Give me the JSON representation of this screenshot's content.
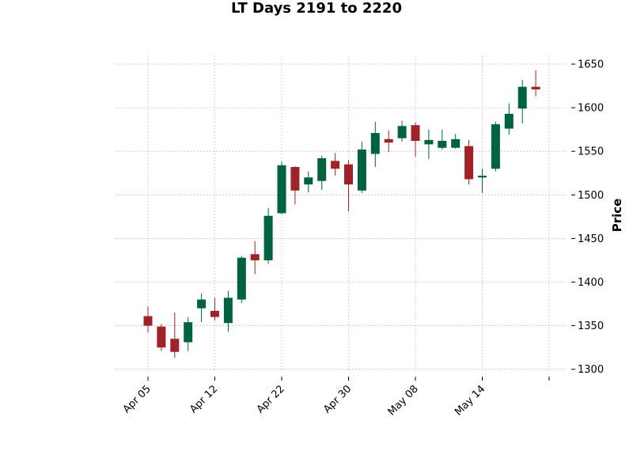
{
  "chart_data": {
    "type": "candlestick",
    "title": "LT Days 2191 to 2220",
    "ylabel": "Price",
    "xlabel": "",
    "ylim": [
      1297,
      1660
    ],
    "y_ticks": [
      1300,
      1350,
      1400,
      1450,
      1500,
      1550,
      1600,
      1650
    ],
    "x_tick_labels": [
      "Apr 05",
      "Apr 12",
      "Apr 22",
      "Apr 30",
      "May 08",
      "May 14",
      ""
    ],
    "x_tick_index": [
      0,
      5,
      10,
      15,
      20,
      25,
      30
    ],
    "grid": true,
    "y_axis_side": "right",
    "colors": {
      "up": "#006340",
      "down": "#a02128",
      "grid": "#b0b0b0"
    },
    "candles": [
      {
        "open": 1361,
        "high": 1372,
        "low": 1342,
        "close": 1350
      },
      {
        "open": 1349,
        "high": 1352,
        "low": 1321,
        "close": 1325
      },
      {
        "open": 1335,
        "high": 1365,
        "low": 1313,
        "close": 1320
      },
      {
        "open": 1331,
        "high": 1360,
        "low": 1321,
        "close": 1354
      },
      {
        "open": 1370,
        "high": 1387,
        "low": 1354,
        "close": 1380
      },
      {
        "open": 1367,
        "high": 1382,
        "low": 1356,
        "close": 1360
      },
      {
        "open": 1353,
        "high": 1390,
        "low": 1343,
        "close": 1382
      },
      {
        "open": 1380,
        "high": 1430,
        "low": 1376,
        "close": 1428
      },
      {
        "open": 1432,
        "high": 1447,
        "low": 1409,
        "close": 1425
      },
      {
        "open": 1425,
        "high": 1485,
        "low": 1421,
        "close": 1476
      },
      {
        "open": 1479,
        "high": 1538,
        "low": 1478,
        "close": 1534
      },
      {
        "open": 1532,
        "high": 1533,
        "low": 1489,
        "close": 1505
      },
      {
        "open": 1512,
        "high": 1527,
        "low": 1503,
        "close": 1520
      },
      {
        "open": 1516,
        "high": 1545,
        "low": 1506,
        "close": 1542
      },
      {
        "open": 1539,
        "high": 1548,
        "low": 1522,
        "close": 1530
      },
      {
        "open": 1535,
        "high": 1540,
        "low": 1481,
        "close": 1512
      },
      {
        "open": 1505,
        "high": 1561,
        "low": 1502,
        "close": 1552
      },
      {
        "open": 1547,
        "high": 1584,
        "low": 1532,
        "close": 1571
      },
      {
        "open": 1564,
        "high": 1574,
        "low": 1549,
        "close": 1560
      },
      {
        "open": 1565,
        "high": 1585,
        "low": 1561,
        "close": 1579
      },
      {
        "open": 1580,
        "high": 1583,
        "low": 1544,
        "close": 1562
      },
      {
        "open": 1558,
        "high": 1575,
        "low": 1541,
        "close": 1563
      },
      {
        "open": 1554,
        "high": 1575,
        "low": 1552,
        "close": 1562
      },
      {
        "open": 1554,
        "high": 1570,
        "low": 1553,
        "close": 1564
      },
      {
        "open": 1556,
        "high": 1563,
        "low": 1512,
        "close": 1518
      },
      {
        "open": 1520,
        "high": 1530,
        "low": 1502,
        "close": 1522
      },
      {
        "open": 1530,
        "high": 1584,
        "low": 1527,
        "close": 1581
      },
      {
        "open": 1576,
        "high": 1605,
        "low": 1569,
        "close": 1593
      },
      {
        "open": 1599,
        "high": 1632,
        "low": 1582,
        "close": 1624
      },
      {
        "open": 1624,
        "high": 1643,
        "low": 1613,
        "close": 1621
      }
    ]
  }
}
